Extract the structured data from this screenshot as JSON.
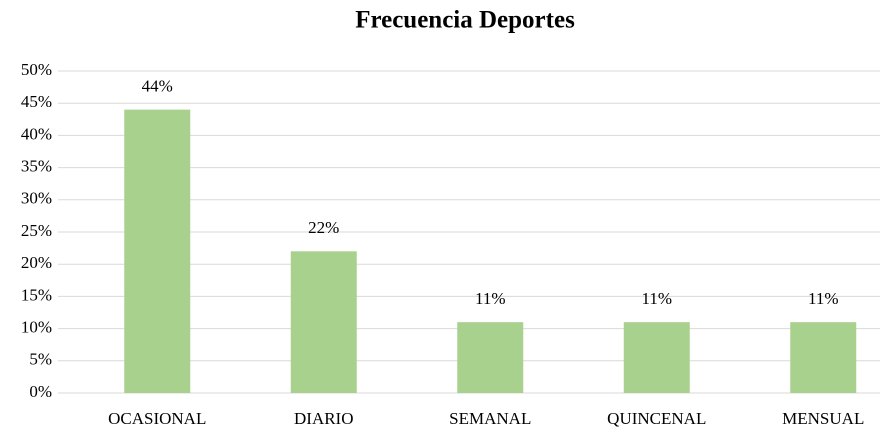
{
  "chart_data": {
    "type": "bar",
    "title": "Frecuencia Deportes",
    "categories": [
      "OCASIONAL",
      "DIARIO",
      "SEMANAL",
      "QUINCENAL",
      "MENSUAL"
    ],
    "values": [
      44,
      22,
      11,
      11,
      11
    ],
    "value_labels": [
      "44%",
      "22%",
      "11%",
      "11%",
      "11%"
    ],
    "color": "#a9d18e",
    "ylim": [
      0,
      50
    ],
    "yticks": [
      {
        "value": 0,
        "label": "0%"
      },
      {
        "value": 5,
        "label": "5%"
      },
      {
        "value": 10,
        "label": "10%"
      },
      {
        "value": 15,
        "label": "15%"
      },
      {
        "value": 20,
        "label": "20%"
      },
      {
        "value": 25,
        "label": "25%"
      },
      {
        "value": 30,
        "label": "30%"
      },
      {
        "value": 35,
        "label": "35%"
      },
      {
        "value": 40,
        "label": "40%"
      },
      {
        "value": 45,
        "label": "45%"
      },
      {
        "value": 50,
        "label": "50%"
      }
    ],
    "grid": true
  }
}
